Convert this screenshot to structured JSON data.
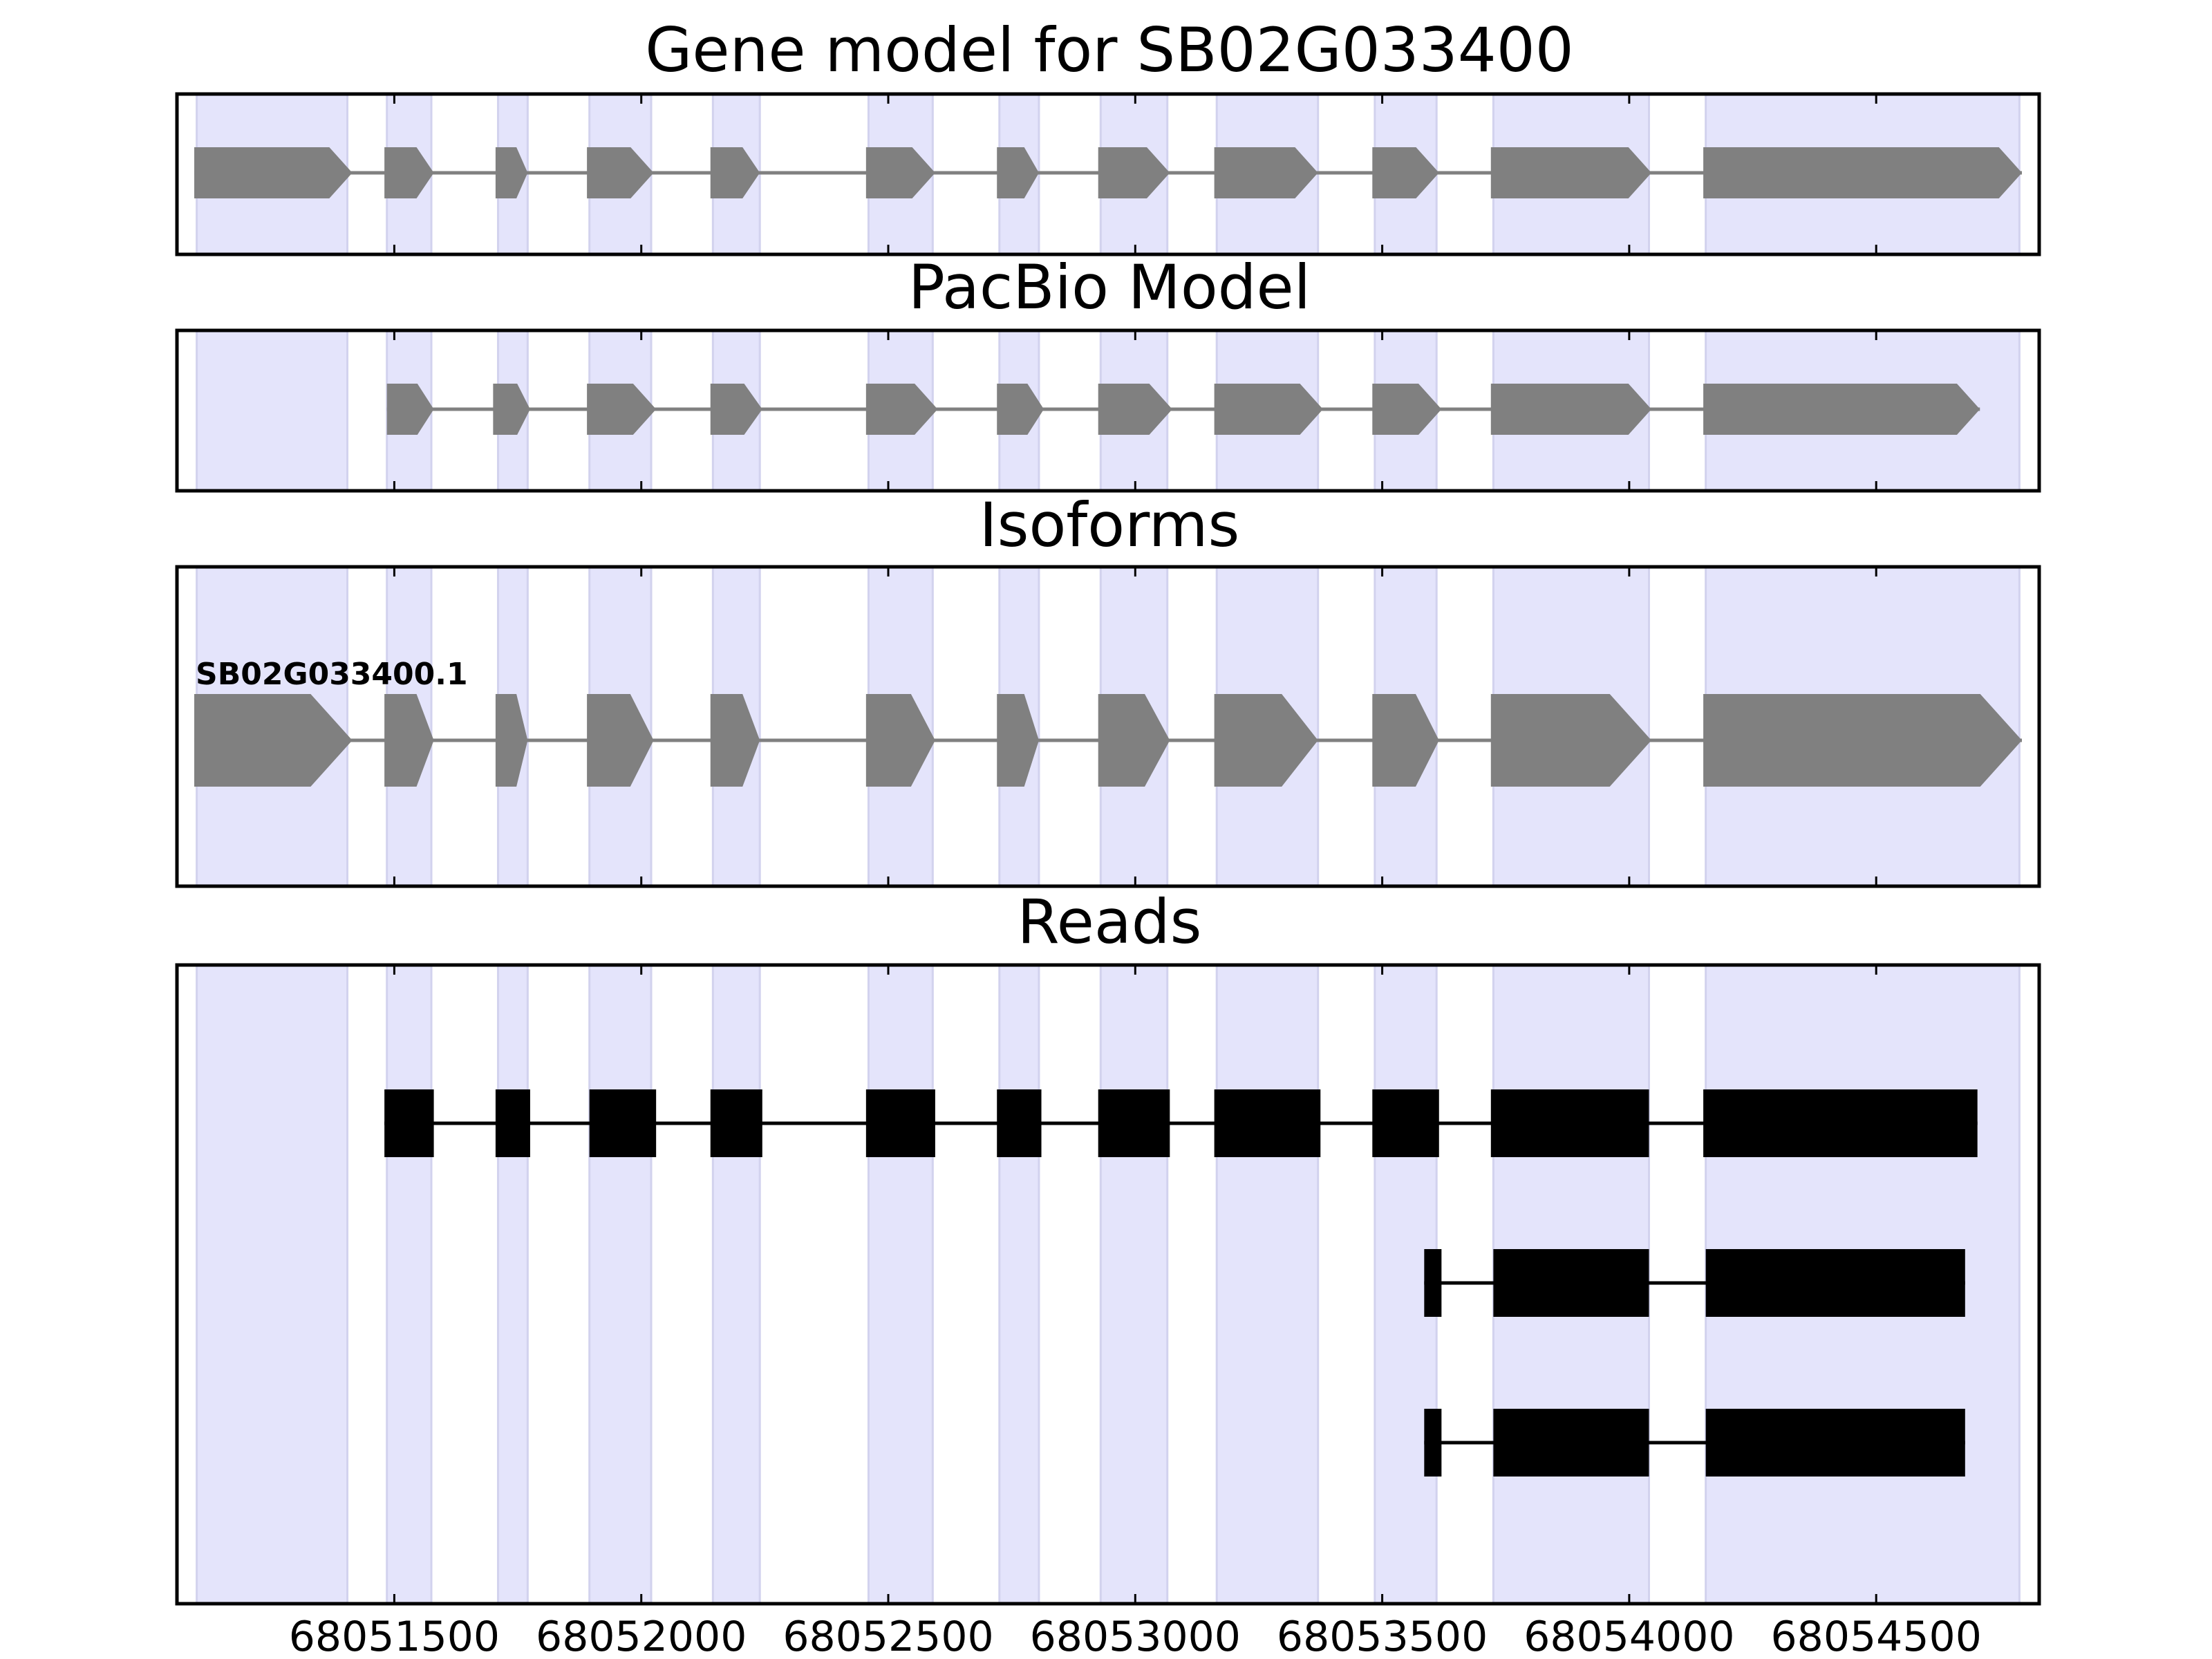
{
  "figure": {
    "title": "Gene model for SB02G033400",
    "colors": {
      "exon_band": "#e4e4fb",
      "band_edge": "#d2d2ee",
      "model_feature": "#808080",
      "read_feature": "#000000",
      "frame": "#000000"
    }
  },
  "chart_data": {
    "type": "gene-track",
    "x_range": [
      68051060,
      68054830
    ],
    "x_ticks": [
      68051500,
      68052000,
      68052500,
      68053000,
      68053500,
      68054000,
      68054500
    ],
    "x_tick_labels": [
      "68051500",
      "68052000",
      "68052500",
      "68053000",
      "68053500",
      "68054000",
      "68054500"
    ],
    "exon_bands": [
      [
        68051100,
        68051405
      ],
      [
        68051485,
        68051575
      ],
      [
        68051710,
        68051770
      ],
      [
        68051895,
        68052020
      ],
      [
        68052145,
        68052240
      ],
      [
        68052460,
        68052590
      ],
      [
        68052725,
        68052805
      ],
      [
        68052930,
        68053065
      ],
      [
        68053165,
        68053370
      ],
      [
        68053485,
        68053610
      ],
      [
        68053725,
        68054040
      ],
      [
        68054155,
        68054790
      ]
    ],
    "panels": [
      {
        "title": "PacBio Model",
        "kind": "model",
        "tracks": [
          {
            "strand": "+",
            "exons": [
              [
                68051485,
                68051580
              ],
              [
                68051700,
                68051775
              ],
              [
                68051890,
                68052030
              ],
              [
                68052140,
                68052245
              ],
              [
                68052455,
                68052600
              ],
              [
                68052720,
                68052815
              ],
              [
                68052925,
                68053075
              ],
              [
                68053160,
                68053380
              ],
              [
                68053480,
                68053620
              ],
              [
                68053720,
                68054045
              ],
              [
                68054150,
                68054710
              ]
            ]
          }
        ]
      },
      {
        "title": "Isoforms",
        "kind": "model",
        "tracks": [
          {
            "name": "SB02G033400.1",
            "strand": "+",
            "exons": [
              [
                68051095,
                68051415
              ],
              [
                68051480,
                68051580
              ],
              [
                68051705,
                68051770
              ],
              [
                68051890,
                68052025
              ],
              [
                68052140,
                68052240
              ],
              [
                68052455,
                68052595
              ],
              [
                68052720,
                68052805
              ],
              [
                68052925,
                68053070
              ],
              [
                68053160,
                68053370
              ],
              [
                68053480,
                68053615
              ],
              [
                68053720,
                68054045
              ],
              [
                68054150,
                68054795
              ]
            ]
          }
        ]
      },
      {
        "title": "Reads",
        "kind": "reads",
        "tracks": [
          {
            "exons": [
              [
                68051480,
                68051580
              ],
              [
                68051705,
                68051775
              ],
              [
                68051895,
                68052030
              ],
              [
                68052140,
                68052245
              ],
              [
                68052455,
                68052595
              ],
              [
                68052720,
                68052810
              ],
              [
                68052925,
                68053070
              ],
              [
                68053160,
                68053375
              ],
              [
                68053480,
                68053615
              ],
              [
                68053720,
                68054040
              ],
              [
                68054150,
                68054705
              ]
            ]
          },
          {
            "exons": [
              [
                68053585,
                68053620
              ],
              [
                68053725,
                68054040
              ],
              [
                68054155,
                68054680
              ]
            ]
          },
          {
            "exons": [
              [
                68053585,
                68053620
              ],
              [
                68053725,
                68054040
              ],
              [
                68054155,
                68054680
              ]
            ]
          }
        ]
      }
    ]
  }
}
